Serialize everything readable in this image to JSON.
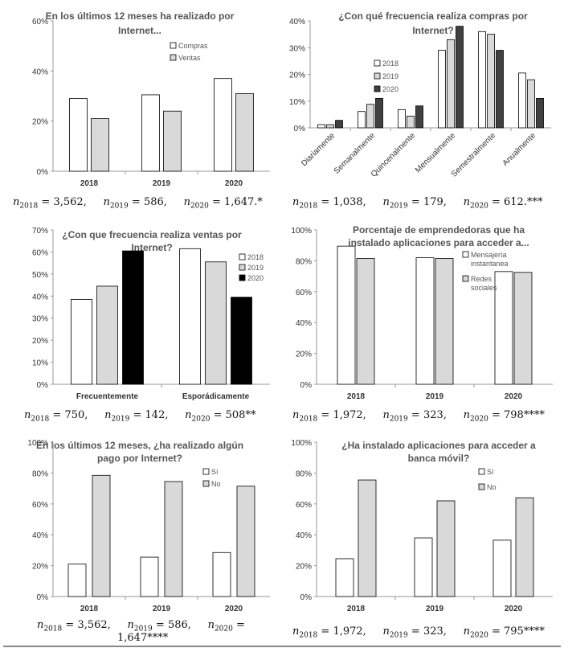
{
  "colors": {
    "y2018": "#ffffff",
    "y2019": "#d9d9d9",
    "y2020_dark": "#404040",
    "y2020_black": "#000000",
    "gray": "#d9d9d9"
  },
  "charts": [
    {
      "id": "c1",
      "type": "bar",
      "title": [
        "En los últimos 12 meses ha  realizado por",
        "Internet..."
      ],
      "categories": [
        "2018",
        "2019",
        "2020"
      ],
      "series": [
        {
          "name": "Compras",
          "values": [
            29,
            30.5,
            37
          ],
          "color": "#ffffff"
        },
        {
          "name": "Ventas",
          "values": [
            21,
            24,
            31
          ],
          "color": "#d9d9d9"
        }
      ],
      "yticks": [
        "0%",
        "20%",
        "40%",
        "60%"
      ],
      "ylim": [
        0,
        60
      ],
      "legend": "top-right",
      "note": {
        "sizes": [
          "3,562,",
          "586,",
          "1,647."
        ],
        "marks": [
          "",
          "",
          "*"
        ]
      }
    },
    {
      "id": "c2",
      "type": "bar",
      "title": [
        "¿Con qué frecuencia realiza compras por",
        "Internet?"
      ],
      "categories": [
        "Diariamente",
        "Semanalmente",
        "Quincenalmente",
        "Mensualmente",
        "Semestralmente",
        "Anualmente"
      ],
      "series": [
        {
          "name": "2018",
          "values": [
            1.2,
            6.1,
            6.8,
            29,
            36,
            20.5
          ],
          "color": "#ffffff"
        },
        {
          "name": "2019",
          "values": [
            1.2,
            8.8,
            4.4,
            33,
            35,
            18
          ],
          "color": "#d9d9d9"
        },
        {
          "name": "2020",
          "values": [
            2.8,
            11,
            8.2,
            38,
            29,
            11
          ],
          "color": "#404040"
        }
      ],
      "yticks": [
        "0%",
        "10%",
        "20%",
        "30%",
        "40%"
      ],
      "ylim": [
        0,
        40
      ],
      "legend": "left",
      "note": {
        "sizes": [
          "1,038,",
          "179,",
          "612."
        ],
        "marks": [
          "",
          "",
          "***"
        ]
      }
    },
    {
      "id": "c3",
      "type": "bar",
      "title": [
        "¿Con que frecuencia realiza ventas por",
        "Internet?"
      ],
      "categories": [
        "Frecuentemente",
        "Esporádicamente"
      ],
      "series": [
        {
          "name": "2018",
          "values": [
            38.5,
            61.5
          ],
          "color": "#ffffff"
        },
        {
          "name": "2019",
          "values": [
            44.5,
            55.5
          ],
          "color": "#d9d9d9"
        },
        {
          "name": "2020",
          "values": [
            60.5,
            39.5
          ],
          "color": "#000000"
        }
      ],
      "yticks": [
        "0%",
        "10%",
        "20%",
        "30%",
        "40%",
        "50%",
        "60%",
        "70%"
      ],
      "ylim": [
        0,
        70
      ],
      "legend": "right",
      "note": {
        "sizes": [
          "750,",
          "142,",
          "508"
        ],
        "marks": [
          "",
          "",
          "**"
        ]
      }
    },
    {
      "id": "c4",
      "type": "bar",
      "title": [
        "Porcentaje de emprendedoras que ha",
        "instalado aplicaciones para acceder a..."
      ],
      "categories": [
        "2018",
        "2019",
        "2020"
      ],
      "series": [
        {
          "name": [
            "Mensajería",
            "instantanea"
          ],
          "values": [
            89.5,
            82,
            73
          ],
          "color": "#ffffff"
        },
        {
          "name": [
            "Redes",
            "sociales"
          ],
          "values": [
            81.5,
            81.5,
            72.5
          ],
          "color": "#d9d9d9"
        }
      ],
      "yticks": [
        "0%",
        "20%",
        "40%",
        "60%",
        "80%",
        "100%"
      ],
      "ylim": [
        0,
        100
      ],
      "legend": "top-right",
      "note": {
        "sizes": [
          "1,972,",
          "323,",
          "798"
        ],
        "marks": [
          "",
          "",
          "****"
        ]
      }
    },
    {
      "id": "c5",
      "type": "bar",
      "title": [
        "En los últimos 12 meses, ¿ha realizado algún",
        "pago por Internet?"
      ],
      "categories": [
        "2018",
        "2019",
        "2020"
      ],
      "series": [
        {
          "name": "Sí",
          "values": [
            21,
            25.5,
            28.5
          ],
          "color": "#ffffff"
        },
        {
          "name": "No",
          "values": [
            78.5,
            74.5,
            71.5
          ],
          "color": "#d9d9d9"
        }
      ],
      "yticks": [
        "0%",
        "20%",
        "40%",
        "60%",
        "80%",
        "100%"
      ],
      "ylim": [
        0,
        100
      ],
      "legend": "top-right",
      "note": {
        "sizes": [
          "3,562,",
          "586,",
          ""
        ],
        "marks": [
          "",
          "",
          ""
        ],
        "line2": "1,647****"
      }
    },
    {
      "id": "c6",
      "type": "bar",
      "title": [
        "¿Ha instalado aplicaciones para acceder a",
        "banca móvil?"
      ],
      "categories": [
        "2018",
        "2019",
        "2020"
      ],
      "series": [
        {
          "name": "Sí",
          "values": [
            24.5,
            38,
            36.5
          ],
          "color": "#ffffff"
        },
        {
          "name": "No",
          "values": [
            75.5,
            62,
            64
          ],
          "color": "#d9d9d9"
        }
      ],
      "yticks": [
        "0%",
        "20%",
        "40%",
        "60%",
        "80%",
        "100%"
      ],
      "ylim": [
        0,
        100
      ],
      "legend": "top-right",
      "note": {
        "sizes": [
          "1,972,",
          "323,",
          "795"
        ],
        "marks": [
          "",
          "",
          "****"
        ]
      }
    }
  ],
  "chart_data": [
    {
      "type": "bar",
      "title": "En los últimos 12 meses ha  realizado por Internet...",
      "categories": [
        "2018",
        "2019",
        "2020"
      ],
      "series": [
        {
          "name": "Compras",
          "values": [
            29,
            30.5,
            37
          ]
        },
        {
          "name": "Ventas",
          "values": [
            21,
            24,
            31
          ]
        }
      ],
      "ylim": [
        0,
        60
      ]
    },
    {
      "type": "bar",
      "title": "¿Con qué frecuencia realiza compras por Internet?",
      "categories": [
        "Diariamente",
        "Semanalmente",
        "Quincenalmente",
        "Mensualmente",
        "Semestralmente",
        "Anualmente"
      ],
      "series": [
        {
          "name": "2018",
          "values": [
            1.2,
            6.1,
            6.8,
            29,
            36,
            20.5
          ]
        },
        {
          "name": "2019",
          "values": [
            1.2,
            8.8,
            4.4,
            33,
            35,
            18
          ]
        },
        {
          "name": "2020",
          "values": [
            2.8,
            11,
            8.2,
            38,
            29,
            11
          ]
        }
      ],
      "ylim": [
        0,
        40
      ]
    },
    {
      "type": "bar",
      "title": "¿Con que frecuencia realiza ventas por Internet?",
      "categories": [
        "Frecuentemente",
        "Esporádicamente"
      ],
      "series": [
        {
          "name": "2018",
          "values": [
            38.5,
            61.5
          ]
        },
        {
          "name": "2019",
          "values": [
            44.5,
            55.5
          ]
        },
        {
          "name": "2020",
          "values": [
            60.5,
            39.5
          ]
        }
      ],
      "ylim": [
        0,
        70
      ]
    },
    {
      "type": "bar",
      "title": "Porcentaje de emprendedoras que ha instalado aplicaciones para acceder a...",
      "categories": [
        "2018",
        "2019",
        "2020"
      ],
      "series": [
        {
          "name": "Mensajería instantanea",
          "values": [
            89.5,
            82,
            73
          ]
        },
        {
          "name": "Redes sociales",
          "values": [
            81.5,
            81.5,
            72.5
          ]
        }
      ],
      "ylim": [
        0,
        100
      ]
    },
    {
      "type": "bar",
      "title": "En los últimos 12 meses, ¿ha realizado algún pago por Internet?",
      "categories": [
        "2018",
        "2019",
        "2020"
      ],
      "series": [
        {
          "name": "Sí",
          "values": [
            21,
            25.5,
            28.5
          ]
        },
        {
          "name": "No",
          "values": [
            78.5,
            74.5,
            71.5
          ]
        }
      ],
      "ylim": [
        0,
        100
      ]
    },
    {
      "type": "bar",
      "title": "¿Ha instalado aplicaciones para acceder a banca móvil?",
      "categories": [
        "2018",
        "2019",
        "2020"
      ],
      "series": [
        {
          "name": "Sí",
          "values": [
            24.5,
            38,
            36.5
          ]
        },
        {
          "name": "No",
          "values": [
            75.5,
            62,
            64
          ]
        }
      ],
      "ylim": [
        0,
        100
      ]
    }
  ]
}
